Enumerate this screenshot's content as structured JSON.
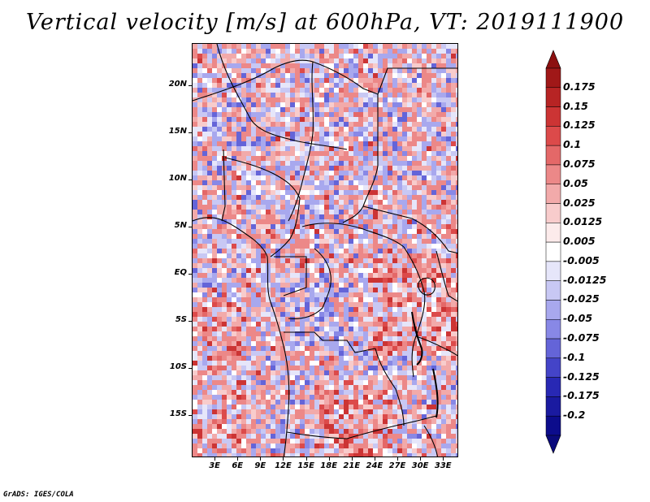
{
  "title": "Vertical velocity [m/s] at 600hPa, VT: 2019111900",
  "map": {
    "lat_labels": [
      "20N",
      "15N",
      "10N",
      "5N",
      "EQ",
      "5S",
      "10S",
      "15S"
    ],
    "lon_labels": [
      "3E",
      "6E",
      "9E",
      "12E",
      "15E",
      "18E",
      "21E",
      "24E",
      "27E",
      "30E",
      "33E"
    ],
    "lat_range": [
      -19.5,
      24.5
    ],
    "lon_range": [
      0,
      35
    ]
  },
  "colorbar": {
    "labels": [
      "0.175",
      "0.15",
      "0.125",
      "0.1",
      "0.075",
      "0.05",
      "0.025",
      "0.0125",
      "0.005",
      "-0.005",
      "-0.0125",
      "-0.025",
      "-0.05",
      "-0.075",
      "-0.1",
      "-0.125",
      "-0.175",
      "-0.2"
    ],
    "colors": [
      "#a01818",
      "#b72424",
      "#cc3434",
      "#dc4a4a",
      "#e46868",
      "#ec8888",
      "#f2aaaa",
      "#f8cccc",
      "#fcebeb",
      "#ffffff",
      "#e6e6fa",
      "#c8c8f4",
      "#a8a8ee",
      "#8888e6",
      "#6464d8",
      "#4444c8",
      "#2828b4",
      "#1a1aa0",
      "#0c0c8c"
    ],
    "top_color": "#8c1010",
    "bottom_color": "#0a0a7c"
  },
  "credit": "GrADS: IGES/COLA"
}
